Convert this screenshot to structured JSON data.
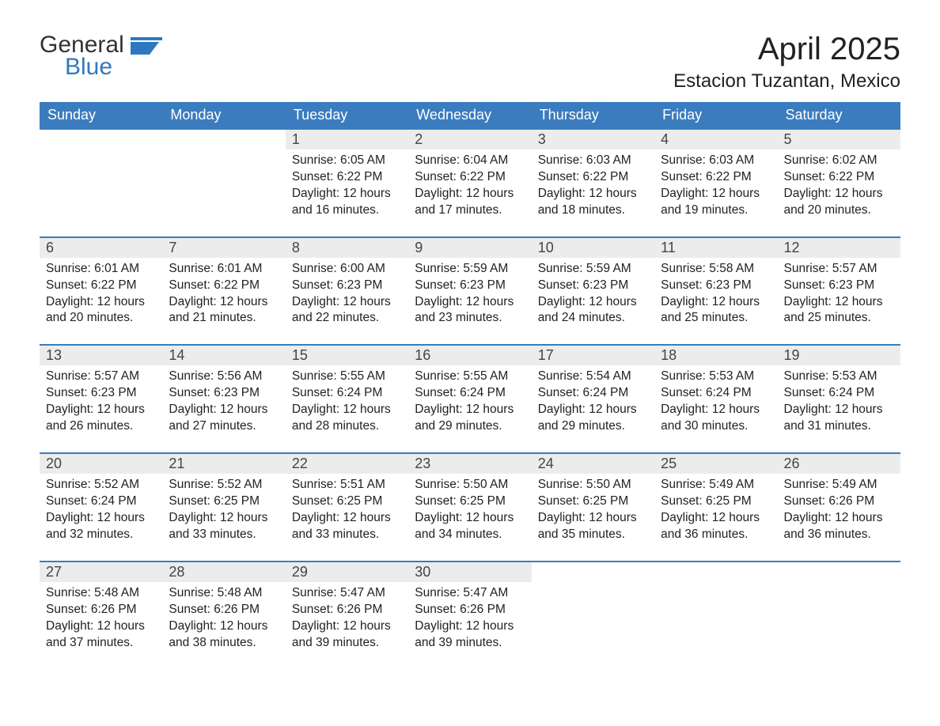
{
  "branding": {
    "text1": "General",
    "text2": "Blue"
  },
  "title": {
    "month": "April 2025",
    "location": "Estacion Tuzantan, Mexico"
  },
  "colors": {
    "header_bg": "#3b7cbf",
    "header_text": "#ffffff",
    "day_number_bg": "#ececec",
    "row_separator": "#3b7cbf",
    "body_text": "#333333",
    "page_bg": "#ffffff",
    "logo_blue": "#2f78bf"
  },
  "typography": {
    "month_fontsize_pt": 30,
    "location_fontsize_pt": 18,
    "header_fontsize_pt": 13,
    "daynum_fontsize_pt": 13,
    "body_fontsize_pt": 11
  },
  "weekdays": [
    "Sunday",
    "Monday",
    "Tuesday",
    "Wednesday",
    "Thursday",
    "Friday",
    "Saturday"
  ],
  "leading_blanks": 2,
  "days": [
    {
      "n": 1,
      "sunrise": "6:05 AM",
      "sunset": "6:22 PM",
      "daylight": "12 hours and 16 minutes."
    },
    {
      "n": 2,
      "sunrise": "6:04 AM",
      "sunset": "6:22 PM",
      "daylight": "12 hours and 17 minutes."
    },
    {
      "n": 3,
      "sunrise": "6:03 AM",
      "sunset": "6:22 PM",
      "daylight": "12 hours and 18 minutes."
    },
    {
      "n": 4,
      "sunrise": "6:03 AM",
      "sunset": "6:22 PM",
      "daylight": "12 hours and 19 minutes."
    },
    {
      "n": 5,
      "sunrise": "6:02 AM",
      "sunset": "6:22 PM",
      "daylight": "12 hours and 20 minutes."
    },
    {
      "n": 6,
      "sunrise": "6:01 AM",
      "sunset": "6:22 PM",
      "daylight": "12 hours and 20 minutes."
    },
    {
      "n": 7,
      "sunrise": "6:01 AM",
      "sunset": "6:22 PM",
      "daylight": "12 hours and 21 minutes."
    },
    {
      "n": 8,
      "sunrise": "6:00 AM",
      "sunset": "6:23 PM",
      "daylight": "12 hours and 22 minutes."
    },
    {
      "n": 9,
      "sunrise": "5:59 AM",
      "sunset": "6:23 PM",
      "daylight": "12 hours and 23 minutes."
    },
    {
      "n": 10,
      "sunrise": "5:59 AM",
      "sunset": "6:23 PM",
      "daylight": "12 hours and 24 minutes."
    },
    {
      "n": 11,
      "sunrise": "5:58 AM",
      "sunset": "6:23 PM",
      "daylight": "12 hours and 25 minutes."
    },
    {
      "n": 12,
      "sunrise": "5:57 AM",
      "sunset": "6:23 PM",
      "daylight": "12 hours and 25 minutes."
    },
    {
      "n": 13,
      "sunrise": "5:57 AM",
      "sunset": "6:23 PM",
      "daylight": "12 hours and 26 minutes."
    },
    {
      "n": 14,
      "sunrise": "5:56 AM",
      "sunset": "6:23 PM",
      "daylight": "12 hours and 27 minutes."
    },
    {
      "n": 15,
      "sunrise": "5:55 AM",
      "sunset": "6:24 PM",
      "daylight": "12 hours and 28 minutes."
    },
    {
      "n": 16,
      "sunrise": "5:55 AM",
      "sunset": "6:24 PM",
      "daylight": "12 hours and 29 minutes."
    },
    {
      "n": 17,
      "sunrise": "5:54 AM",
      "sunset": "6:24 PM",
      "daylight": "12 hours and 29 minutes."
    },
    {
      "n": 18,
      "sunrise": "5:53 AM",
      "sunset": "6:24 PM",
      "daylight": "12 hours and 30 minutes."
    },
    {
      "n": 19,
      "sunrise": "5:53 AM",
      "sunset": "6:24 PM",
      "daylight": "12 hours and 31 minutes."
    },
    {
      "n": 20,
      "sunrise": "5:52 AM",
      "sunset": "6:24 PM",
      "daylight": "12 hours and 32 minutes."
    },
    {
      "n": 21,
      "sunrise": "5:52 AM",
      "sunset": "6:25 PM",
      "daylight": "12 hours and 33 minutes."
    },
    {
      "n": 22,
      "sunrise": "5:51 AM",
      "sunset": "6:25 PM",
      "daylight": "12 hours and 33 minutes."
    },
    {
      "n": 23,
      "sunrise": "5:50 AM",
      "sunset": "6:25 PM",
      "daylight": "12 hours and 34 minutes."
    },
    {
      "n": 24,
      "sunrise": "5:50 AM",
      "sunset": "6:25 PM",
      "daylight": "12 hours and 35 minutes."
    },
    {
      "n": 25,
      "sunrise": "5:49 AM",
      "sunset": "6:25 PM",
      "daylight": "12 hours and 36 minutes."
    },
    {
      "n": 26,
      "sunrise": "5:49 AM",
      "sunset": "6:26 PM",
      "daylight": "12 hours and 36 minutes."
    },
    {
      "n": 27,
      "sunrise": "5:48 AM",
      "sunset": "6:26 PM",
      "daylight": "12 hours and 37 minutes."
    },
    {
      "n": 28,
      "sunrise": "5:48 AM",
      "sunset": "6:26 PM",
      "daylight": "12 hours and 38 minutes."
    },
    {
      "n": 29,
      "sunrise": "5:47 AM",
      "sunset": "6:26 PM",
      "daylight": "12 hours and 39 minutes."
    },
    {
      "n": 30,
      "sunrise": "5:47 AM",
      "sunset": "6:26 PM",
      "daylight": "12 hours and 39 minutes."
    }
  ],
  "labels": {
    "sunrise": "Sunrise:",
    "sunset": "Sunset:",
    "daylight": "Daylight:"
  }
}
